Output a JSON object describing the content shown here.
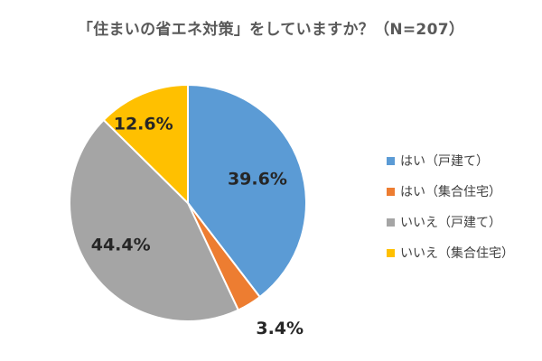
{
  "chart_data": {
    "type": "pie",
    "title": "「住まいの省エネ対策」をしていますか？（N=207）",
    "categories": [
      "はい（戸建て）",
      "はい（集合住宅）",
      "いいえ（戸建て）",
      "いいえ（集合住宅）"
    ],
    "values": [
      39.6,
      3.4,
      44.4,
      12.6
    ],
    "labels": [
      "39.6%",
      "3.4%",
      "44.4%",
      "12.6%"
    ],
    "colors": [
      "#5B9BD5",
      "#ED7D31",
      "#A5A5A5",
      "#FFC000"
    ],
    "legend_position": "right"
  }
}
